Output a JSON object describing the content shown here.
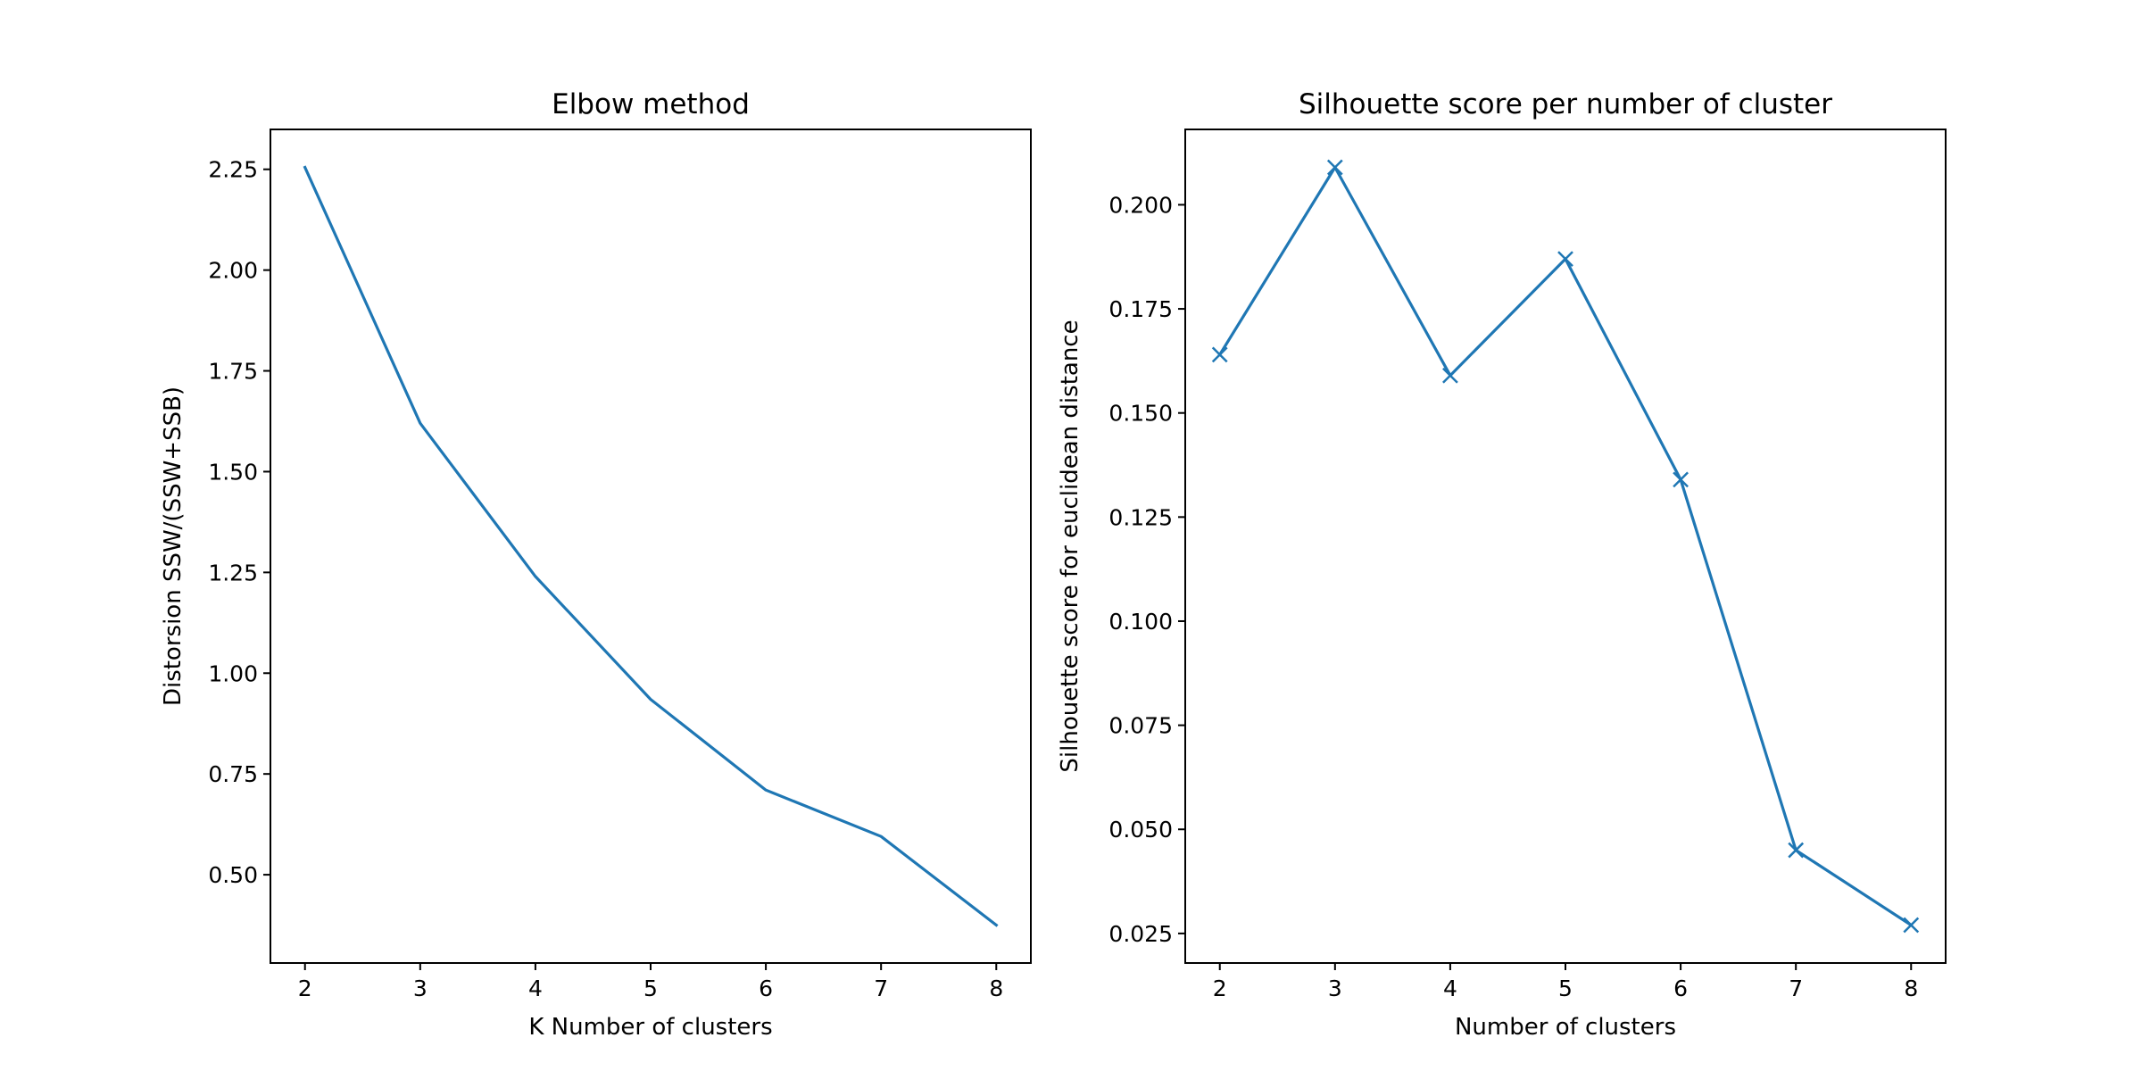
{
  "figure": {
    "background": "#ffffff"
  },
  "chart_data": [
    {
      "type": "line",
      "title": "Elbow method",
      "xlabel": "K Number of clusters",
      "ylabel": "Distorsion SSW/(SSW+SSB)",
      "x": [
        2,
        3,
        4,
        5,
        6,
        7,
        8
      ],
      "series": [
        {
          "values": [
            2.255,
            1.62,
            1.24,
            0.935,
            0.71,
            0.595,
            0.375
          ],
          "color": "#1f77b4",
          "marker": "none"
        }
      ],
      "xlim": [
        1.7,
        8.3
      ],
      "ylim": [
        0.281,
        2.349
      ],
      "xticks": [
        2,
        3,
        4,
        5,
        6,
        7,
        8
      ],
      "xtick_labels": [
        "2",
        "3",
        "4",
        "5",
        "6",
        "7",
        "8"
      ],
      "yticks": [
        0.5,
        0.75,
        1.0,
        1.25,
        1.5,
        1.75,
        2.0,
        2.25
      ],
      "ytick_labels": [
        "0.50",
        "0.75",
        "1.00",
        "1.25",
        "1.50",
        "1.75",
        "2.00",
        "2.25"
      ],
      "grid": false,
      "legend": false
    },
    {
      "type": "line",
      "title": "Silhouette score per number of cluster",
      "xlabel": "Number of clusters",
      "ylabel": "Silhouette score for euclidean distance",
      "x": [
        2,
        3,
        4,
        5,
        6,
        7,
        8
      ],
      "series": [
        {
          "values": [
            0.164,
            0.209,
            0.159,
            0.187,
            0.134,
            0.045,
            0.027
          ],
          "color": "#1f77b4",
          "marker": "x"
        }
      ],
      "xlim": [
        1.7,
        8.3
      ],
      "ylim": [
        0.0179,
        0.2181
      ],
      "xticks": [
        2,
        3,
        4,
        5,
        6,
        7,
        8
      ],
      "xtick_labels": [
        "2",
        "3",
        "4",
        "5",
        "6",
        "7",
        "8"
      ],
      "yticks": [
        0.025,
        0.05,
        0.075,
        0.1,
        0.125,
        0.15,
        0.175,
        0.2
      ],
      "ytick_labels": [
        "0.025",
        "0.050",
        "0.075",
        "0.100",
        "0.125",
        "0.150",
        "0.175",
        "0.200"
      ],
      "grid": false,
      "legend": false
    }
  ]
}
